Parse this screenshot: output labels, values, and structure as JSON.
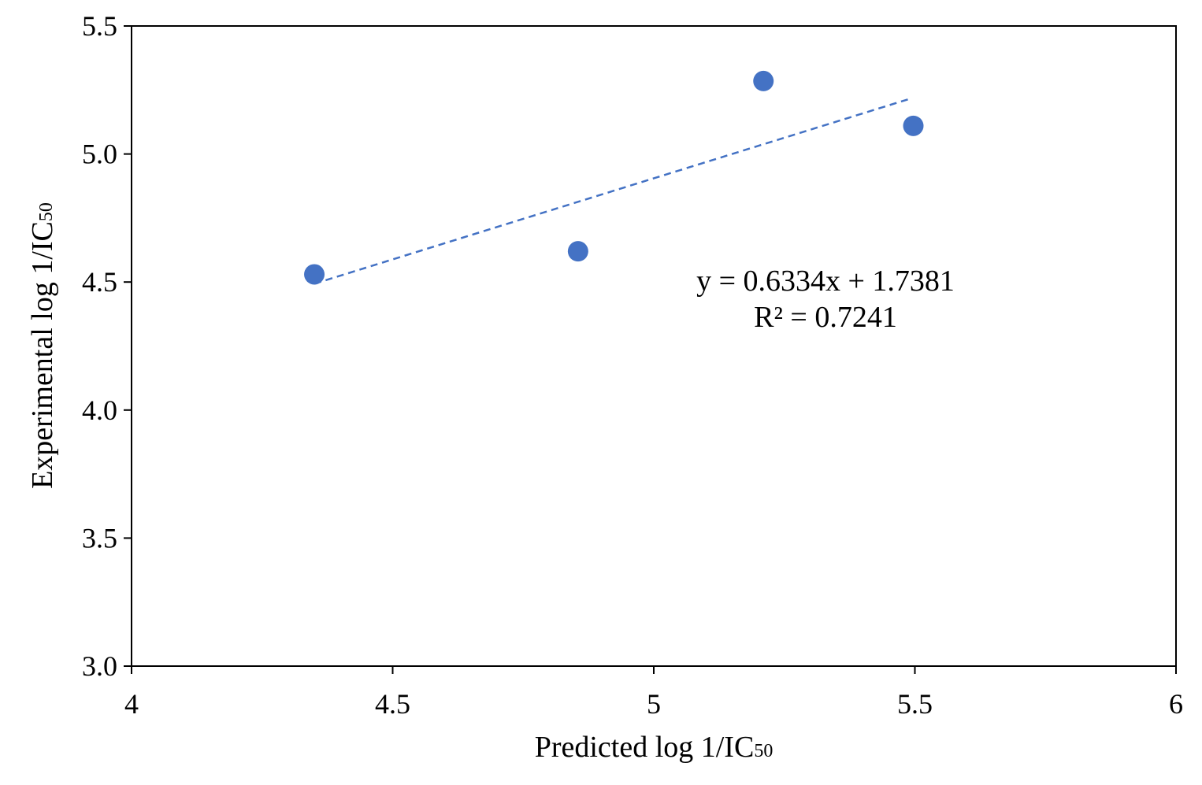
{
  "chart_data": {
    "type": "scatter",
    "title": "",
    "xlabel": {
      "main": "Predicted log 1/IC",
      "sub": "50"
    },
    "ylabel": {
      "main": "Experimental log 1/IC",
      "sub": "50"
    },
    "xlim": [
      4,
      6
    ],
    "ylim": [
      3.0,
      5.5
    ],
    "x_ticks": [
      4,
      4.5,
      5,
      5.5,
      6
    ],
    "x_tick_labels": [
      "4",
      "4.5",
      "5",
      "5.5",
      "6"
    ],
    "y_ticks": [
      3.0,
      3.5,
      4.0,
      4.5,
      5.0,
      5.5
    ],
    "y_tick_labels": [
      "3.0",
      "3.5",
      "4.0",
      "4.5",
      "5.0",
      "5.5"
    ],
    "grid": false,
    "series": [
      {
        "points": [
          {
            "x": 4.35,
            "y": 4.53
          },
          {
            "x": 4.855,
            "y": 4.62
          },
          {
            "x": 5.21,
            "y": 5.285
          },
          {
            "x": 5.497,
            "y": 5.11
          }
        ],
        "color": "#4472c4"
      }
    ],
    "trendline": {
      "type": "linear",
      "slope": 0.6334,
      "intercept": 1.7381,
      "x_range": [
        4.35,
        5.49
      ],
      "style": "dashed",
      "color": "#4472c4"
    },
    "annotations": [
      "y = 0.6334x + 1.7381",
      "R² = 0.7241"
    ]
  }
}
